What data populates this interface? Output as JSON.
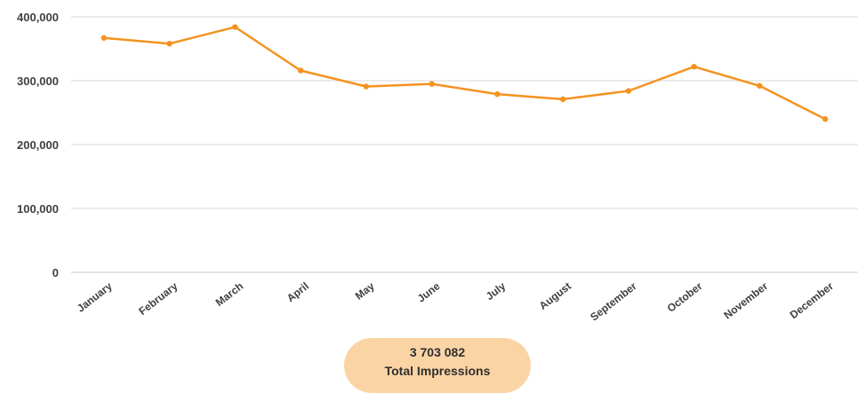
{
  "chart_data": {
    "type": "line",
    "title": "",
    "xlabel": "",
    "ylabel": "",
    "categories": [
      "January",
      "February",
      "March",
      "April",
      "May",
      "June",
      "July",
      "August",
      "September",
      "October",
      "November",
      "December"
    ],
    "series": [
      {
        "values": [
          367000,
          358000,
          384000,
          316000,
          291000,
          295000,
          279000,
          271000,
          284000,
          322000,
          292000,
          240000
        ],
        "color": "#f4921f"
      }
    ],
    "ylim": [
      0,
      400000
    ],
    "yticks": [
      {
        "value": 0,
        "label": "0"
      },
      {
        "value": 100000,
        "label": "100,000"
      },
      {
        "value": 200000,
        "label": "200,000"
      },
      {
        "value": 300000,
        "label": "300,000"
      },
      {
        "value": 400000,
        "label": "400,000"
      }
    ],
    "grid": true,
    "legend": "none"
  },
  "summary": {
    "value": "3 703 082",
    "label": "Total Impressions",
    "badge_color": "#fbd4a5"
  }
}
